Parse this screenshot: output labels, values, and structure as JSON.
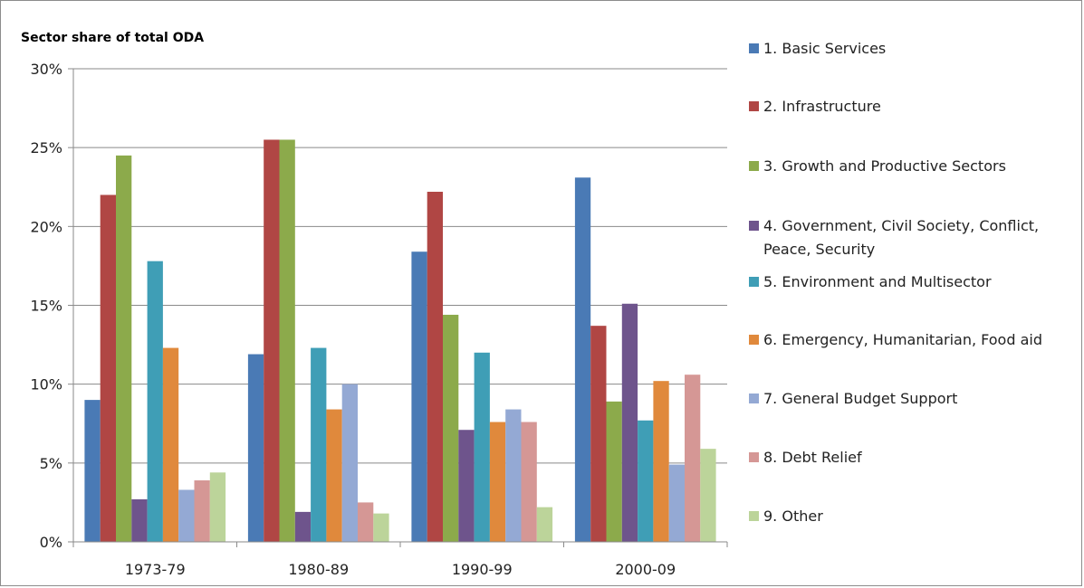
{
  "chart_data": {
    "type": "bar",
    "title": "Sector share of total ODA",
    "xlabel": "",
    "ylabel": "",
    "ylim": [
      0,
      30
    ],
    "yticks": [
      "0%",
      "5%",
      "10%",
      "15%",
      "20%",
      "25%",
      "30%"
    ],
    "ytick_values": [
      0,
      5,
      10,
      15,
      20,
      25,
      30
    ],
    "categories": [
      "1973-79",
      "1980-89",
      "1990-99",
      "2000-09"
    ],
    "grid": true,
    "legend_position": "right",
    "series": [
      {
        "name": "1. Basic Services",
        "color": "#4a7ab5",
        "values": [
          9.0,
          11.9,
          18.4,
          23.1
        ]
      },
      {
        "name": "2. Infrastructure",
        "color": "#b04644",
        "values": [
          22.0,
          25.5,
          22.2,
          13.7
        ]
      },
      {
        "name": "3. Growth and Productive Sectors",
        "color": "#8caa4b",
        "values": [
          24.5,
          25.5,
          14.4,
          8.9
        ]
      },
      {
        "name": "4. Government, Civil Society, Conflict, Peace, Security",
        "color": "#6e548c",
        "values": [
          2.7,
          1.9,
          7.1,
          15.1
        ]
      },
      {
        "name": "5. Environment and Multisector",
        "color": "#3f9eb6",
        "values": [
          17.8,
          12.3,
          12.0,
          7.7
        ]
      },
      {
        "name": "6. Emergency, Humanitarian, Food aid",
        "color": "#e0893c",
        "values": [
          12.3,
          8.4,
          7.6,
          10.2
        ]
      },
      {
        "name": "7. General Budget Support",
        "color": "#94a9d4",
        "values": [
          3.3,
          10.0,
          8.4,
          4.9
        ]
      },
      {
        "name": "8. Debt Relief",
        "color": "#d59795",
        "values": [
          3.9,
          2.5,
          7.6,
          10.6
        ]
      },
      {
        "name": "9. Other",
        "color": "#bcd49a",
        "values": [
          4.4,
          1.8,
          2.2,
          5.9
        ]
      }
    ]
  }
}
